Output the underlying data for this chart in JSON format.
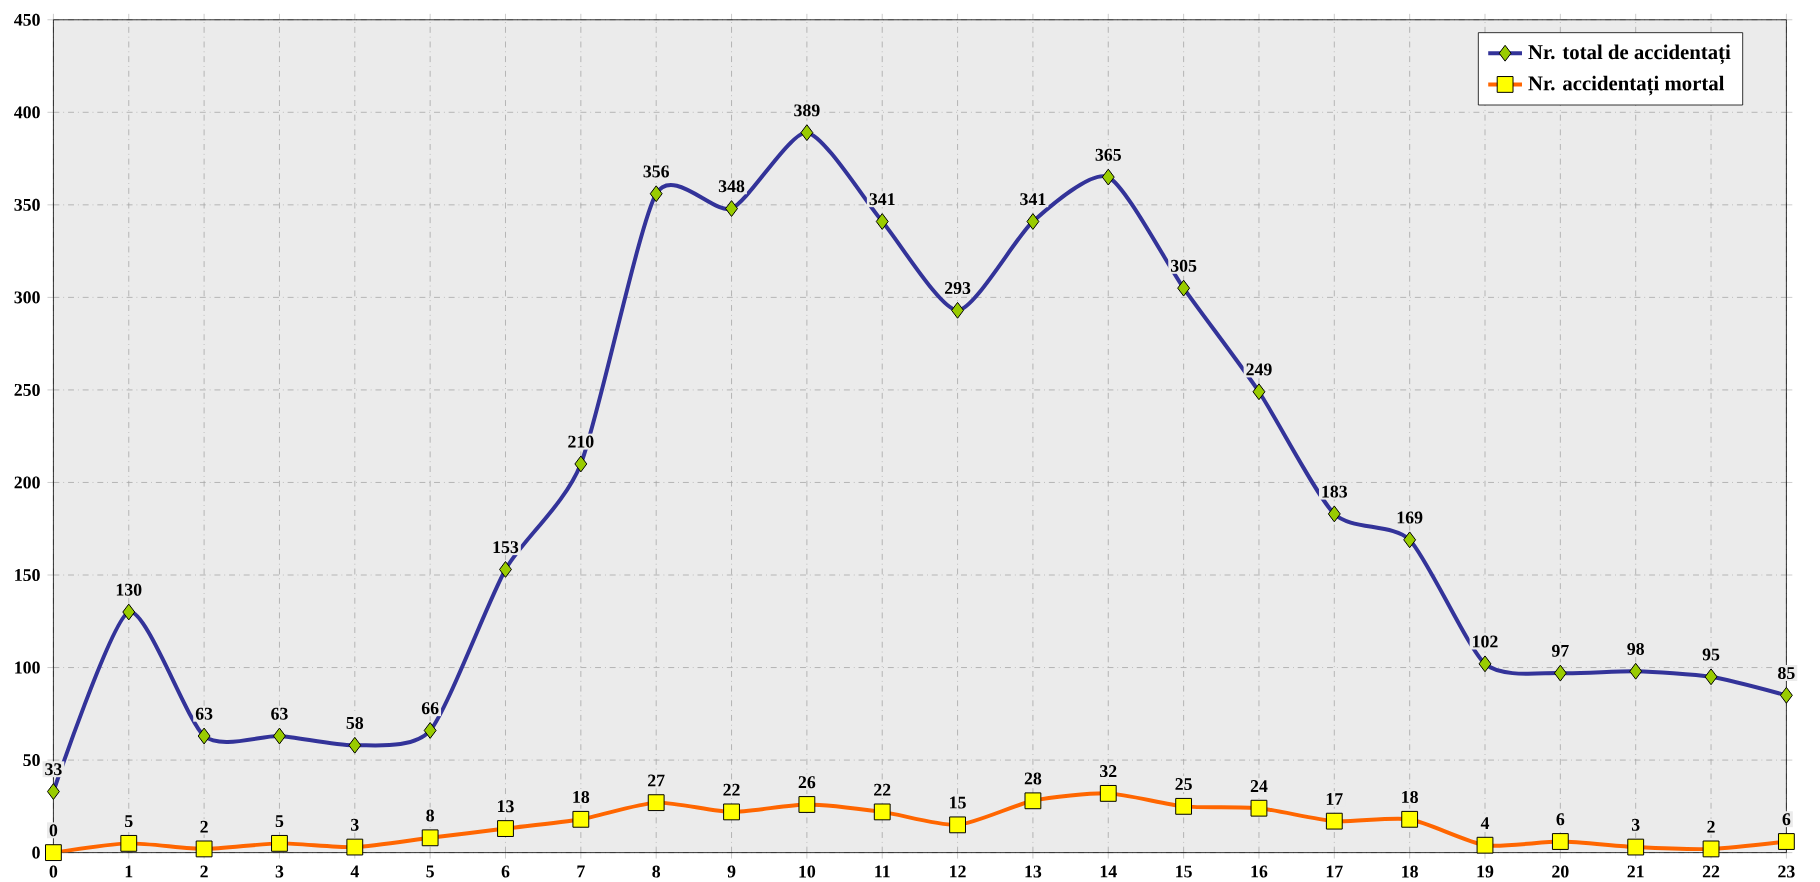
{
  "chart_data": {
    "type": "line",
    "x": [
      0,
      1,
      2,
      3,
      4,
      5,
      6,
      7,
      8,
      9,
      10,
      11,
      12,
      13,
      14,
      15,
      16,
      17,
      18,
      19,
      20,
      21,
      22,
      23
    ],
    "xlim": [
      0,
      23
    ],
    "xticks": [
      0,
      1,
      2,
      3,
      4,
      5,
      6,
      7,
      8,
      9,
      10,
      11,
      12,
      13,
      14,
      15,
      16,
      17,
      18,
      19,
      20,
      21,
      22,
      23
    ],
    "ylim": [
      0,
      450
    ],
    "yticks": [
      0,
      50,
      100,
      150,
      200,
      250,
      300,
      350,
      400,
      450
    ],
    "grid": true,
    "legend": "top right",
    "data_labels": true,
    "series": [
      {
        "name": "Nr. total de accidentați",
        "color": "#333399",
        "marker": "diamond",
        "values": [
          33,
          130,
          63,
          63,
          58,
          66,
          153,
          210,
          356,
          348,
          389,
          341,
          293,
          341,
          365,
          305,
          249,
          183,
          169,
          102,
          97,
          98,
          95,
          85
        ]
      },
      {
        "name": "Nr. accidentați mortal",
        "color": "#ff6600",
        "marker": "square",
        "values": [
          0,
          5,
          2,
          5,
          3,
          8,
          13,
          18,
          27,
          22,
          26,
          22,
          15,
          28,
          32,
          25,
          24,
          17,
          18,
          4,
          6,
          3,
          2,
          6
        ]
      }
    ]
  }
}
